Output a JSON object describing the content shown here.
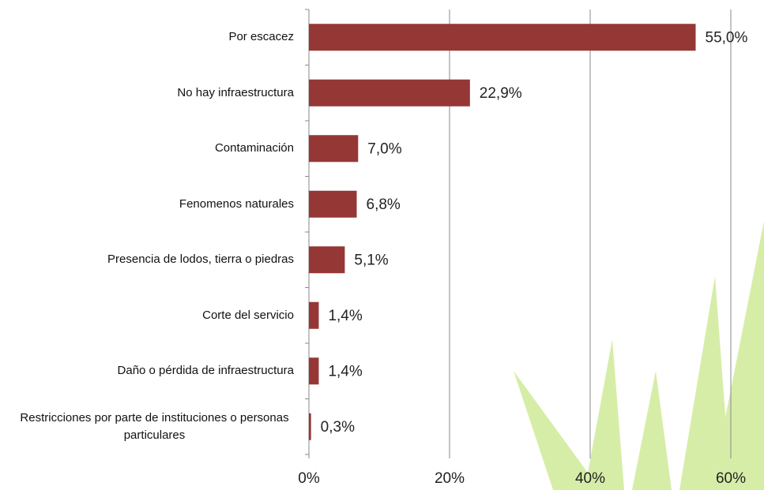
{
  "chart_data": {
    "type": "hbar",
    "categories": [
      "Por escacez",
      "No hay infraestructura",
      "Contaminación",
      "Fenomenos naturales",
      "Presencia de lodos, tierra o piedras",
      "Corte del servicio",
      "Daño o pérdida de infraestructura",
      "Restricciones por parte de instituciones o personas particulares"
    ],
    "values": [
      55.0,
      22.9,
      7.0,
      6.8,
      5.1,
      1.4,
      1.4,
      0.3
    ],
    "value_labels": [
      "55,0%",
      "22,9%",
      "7,0%",
      "6,8%",
      "5,1%",
      "1,4%",
      "1,4%",
      "0,3%"
    ],
    "color": "#953735",
    "xlim": [
      0,
      60
    ],
    "xticks": [
      {
        "value": 0,
        "label": "0%"
      },
      {
        "value": 20,
        "label": "20%"
      },
      {
        "value": 40,
        "label": "40%"
      },
      {
        "value": 60,
        "label": "60%"
      }
    ],
    "grid": true
  }
}
